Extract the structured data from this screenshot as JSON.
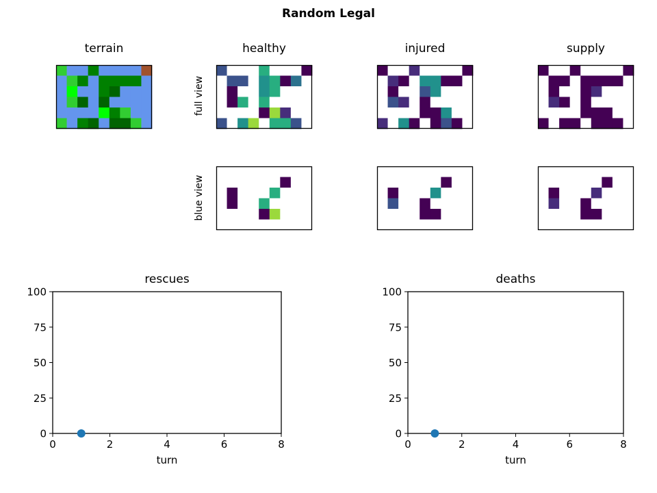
{
  "title": "Random Legal",
  "colors": {
    "terrain": {
      "0": "#6495ed",
      "1": "#32cd32",
      "2": "#008000",
      "3": "#006400",
      "4": "#00ff00",
      "5": "#a0522d"
    },
    "viridis": {
      "0": "#ffffff",
      "1": "#440154",
      "2": "#472d7b",
      "3": "#3b528b",
      "4": "#2c728e",
      "5": "#21918c",
      "6": "#28ae80",
      "7": "#5ec962",
      "8": "#9bd93c",
      "9": "#3bbc74"
    },
    "marker": "#1f77b4"
  },
  "chart_data": [
    {
      "type": "heatmap",
      "title": "terrain",
      "grid": [
        [
          1,
          0,
          0,
          2,
          0,
          0,
          0,
          0,
          5
        ],
        [
          0,
          1,
          2,
          0,
          2,
          2,
          2,
          2,
          0
        ],
        [
          0,
          4,
          0,
          0,
          2,
          3,
          0,
          0,
          0
        ],
        [
          0,
          1,
          3,
          0,
          3,
          0,
          0,
          0,
          0
        ],
        [
          0,
          0,
          0,
          0,
          4,
          2,
          1,
          0,
          0
        ],
        [
          1,
          0,
          2,
          3,
          0,
          3,
          3,
          1,
          0
        ]
      ]
    },
    {
      "type": "heatmap",
      "title": "healthy",
      "ylabel": "full view",
      "grid": [
        [
          3,
          0,
          0,
          0,
          6,
          0,
          0,
          0,
          1
        ],
        [
          0,
          3,
          3,
          0,
          5,
          6,
          1,
          4,
          0
        ],
        [
          0,
          1,
          0,
          0,
          5,
          6,
          0,
          0,
          0
        ],
        [
          0,
          1,
          6,
          0,
          6,
          0,
          0,
          0,
          0
        ],
        [
          0,
          0,
          0,
          0,
          1,
          8,
          2,
          0,
          0
        ],
        [
          3,
          0,
          5,
          8,
          0,
          6,
          6,
          3,
          0
        ]
      ]
    },
    {
      "type": "heatmap",
      "title": "injured",
      "grid": [
        [
          1,
          0,
          0,
          2,
          0,
          0,
          0,
          0,
          1
        ],
        [
          0,
          2,
          1,
          0,
          5,
          5,
          1,
          1,
          0
        ],
        [
          0,
          1,
          0,
          0,
          3,
          5,
          0,
          0,
          0
        ],
        [
          0,
          3,
          2,
          0,
          1,
          0,
          0,
          0,
          0
        ],
        [
          0,
          0,
          0,
          0,
          1,
          1,
          5,
          0,
          0
        ],
        [
          2,
          0,
          5,
          1,
          0,
          1,
          3,
          1,
          0
        ]
      ]
    },
    {
      "type": "heatmap",
      "title": "supply",
      "grid": [
        [
          1,
          0,
          0,
          1,
          0,
          0,
          0,
          0,
          1
        ],
        [
          0,
          1,
          1,
          0,
          1,
          1,
          1,
          1,
          0
        ],
        [
          0,
          1,
          0,
          0,
          1,
          2,
          0,
          0,
          0
        ],
        [
          0,
          2,
          1,
          0,
          1,
          0,
          0,
          0,
          0
        ],
        [
          0,
          0,
          0,
          0,
          1,
          1,
          1,
          0,
          0
        ],
        [
          1,
          0,
          1,
          1,
          0,
          1,
          1,
          1,
          0
        ]
      ]
    },
    {
      "type": "heatmap",
      "ylabel": "blue view",
      "grid": [
        [
          0,
          0,
          0,
          0,
          0,
          0,
          0,
          0,
          0
        ],
        [
          0,
          0,
          0,
          0,
          0,
          0,
          1,
          0,
          0
        ],
        [
          0,
          1,
          0,
          0,
          0,
          6,
          0,
          0,
          0
        ],
        [
          0,
          1,
          0,
          0,
          6,
          0,
          0,
          0,
          0
        ],
        [
          0,
          0,
          0,
          0,
          1,
          8,
          0,
          0,
          0
        ],
        [
          0,
          0,
          0,
          0,
          0,
          0,
          0,
          0,
          0
        ]
      ]
    },
    {
      "type": "heatmap",
      "grid": [
        [
          0,
          0,
          0,
          0,
          0,
          0,
          0,
          0,
          0
        ],
        [
          0,
          0,
          0,
          0,
          0,
          0,
          1,
          0,
          0
        ],
        [
          0,
          1,
          0,
          0,
          0,
          5,
          0,
          0,
          0
        ],
        [
          0,
          3,
          0,
          0,
          1,
          0,
          0,
          0,
          0
        ],
        [
          0,
          0,
          0,
          0,
          1,
          1,
          0,
          0,
          0
        ],
        [
          0,
          0,
          0,
          0,
          0,
          0,
          0,
          0,
          0
        ]
      ]
    },
    {
      "type": "heatmap",
      "grid": [
        [
          0,
          0,
          0,
          0,
          0,
          0,
          0,
          0,
          0
        ],
        [
          0,
          0,
          0,
          0,
          0,
          0,
          1,
          0,
          0
        ],
        [
          0,
          1,
          0,
          0,
          0,
          2,
          0,
          0,
          0
        ],
        [
          0,
          2,
          0,
          0,
          1,
          0,
          0,
          0,
          0
        ],
        [
          0,
          0,
          0,
          0,
          1,
          1,
          0,
          0,
          0
        ],
        [
          0,
          0,
          0,
          0,
          0,
          0,
          0,
          0,
          0
        ]
      ]
    },
    {
      "type": "scatter",
      "title": "rescues",
      "xlabel": "turn",
      "xlim": [
        0,
        8
      ],
      "ylim": [
        0,
        100
      ],
      "xticks": [
        "0",
        "2",
        "4",
        "6",
        "8"
      ],
      "yticks": [
        "0",
        "25",
        "50",
        "75",
        "100"
      ],
      "x": [
        1
      ],
      "y": [
        0
      ]
    },
    {
      "type": "scatter",
      "title": "deaths",
      "xlabel": "turn",
      "xlim": [
        0,
        8
      ],
      "ylim": [
        0,
        100
      ],
      "xticks": [
        "0",
        "2",
        "4",
        "6",
        "8"
      ],
      "yticks": [
        "0",
        "25",
        "50",
        "75",
        "100"
      ],
      "x": [
        1
      ],
      "y": [
        0
      ]
    }
  ]
}
